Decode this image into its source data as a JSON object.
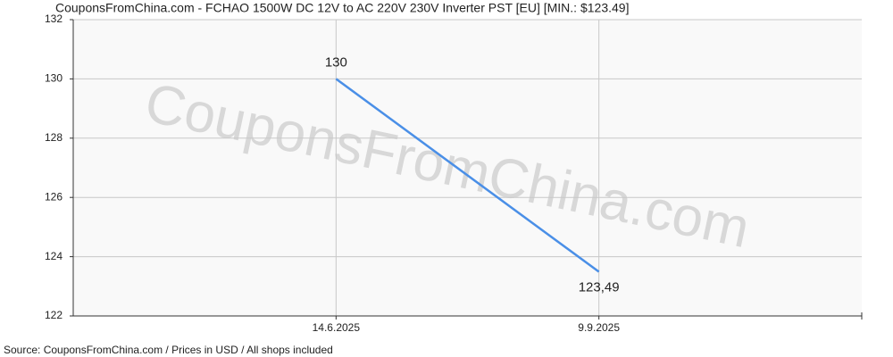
{
  "chart_data": {
    "type": "line",
    "title": "CouponsFromChina.com - FCHAO 1500W DC 12V to AC 220V 230V Inverter PST [EU] [MIN.: $123.49]",
    "watermark": "CouponsFromChina.com",
    "source": "Source: CouponsFromChina.com / Prices in USD / All shops included",
    "categories": [
      "14.6.2025",
      "9.9.2025"
    ],
    "values": [
      130,
      123.49
    ],
    "value_labels": [
      "130",
      "123,49"
    ],
    "color": "#4a8fe7",
    "ylim": [
      122,
      132
    ],
    "yticks": [
      122,
      124,
      126,
      128,
      130,
      132
    ],
    "grid": true
  }
}
